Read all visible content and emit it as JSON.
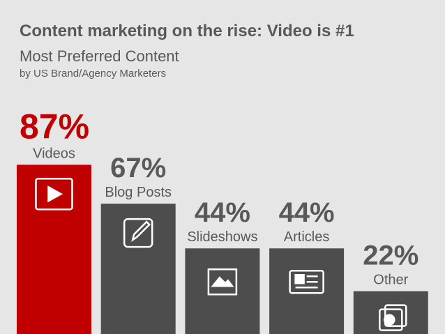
{
  "chart_data": {
    "type": "bar",
    "title": "Content marketing on the rise: Video is #1",
    "subtitle": "Most Preferred Content",
    "note": "by US Brand/Agency Marketers",
    "categories": [
      "Videos",
      "Blog Posts",
      "Slideshows",
      "Articles",
      "Other"
    ],
    "values": [
      87,
      67,
      44,
      44,
      22
    ],
    "value_labels": [
      "87%",
      "67%",
      "44%",
      "44%",
      "22%"
    ],
    "colors": [
      "#c00000",
      "#4d4d4d",
      "#4d4d4d",
      "#4d4d4d",
      "#4d4d4d"
    ]
  }
}
